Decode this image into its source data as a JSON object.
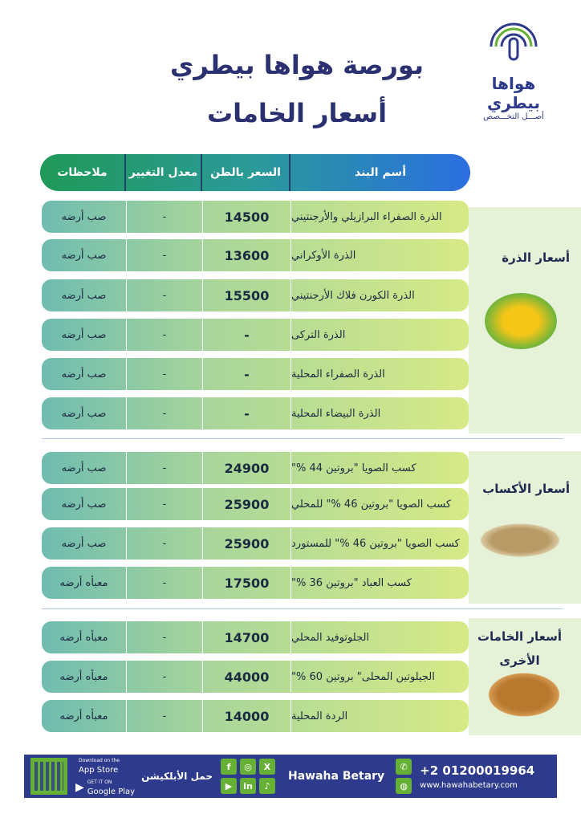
{
  "brand": {
    "name_ar": "هواها بيطري",
    "tagline_ar": "أصـــل التخـــصص"
  },
  "header": {
    "title": "بورصة هواها بيطري",
    "subtitle": "أسعار الخامات"
  },
  "table": {
    "columns": {
      "name": "أسم البند",
      "price": "السعر بالطن",
      "change": "معدل التغيير",
      "notes": "ملاحظات"
    }
  },
  "categories": [
    {
      "label": "أسعار الذرة",
      "rows": [
        {
          "name": "الذرة الصفراء  البرازيلي والأرجنتيني",
          "price": "14500",
          "change": "-",
          "notes": "صب أرضه"
        },
        {
          "name": "الذرة الأوكراني",
          "price": "13600",
          "change": "-",
          "notes": "صب أرضه"
        },
        {
          "name": "الذرة الكورن فلاك الأرجنتيني",
          "price": "15500",
          "change": "-",
          "notes": "صب أرضه"
        },
        {
          "name": "الذرة  التركى",
          "price": "-",
          "change": "-",
          "notes": "صب أرضه"
        },
        {
          "name": "الذرة الصفراء المحلية",
          "price": "-",
          "change": "-",
          "notes": "صب أرضه"
        },
        {
          "name": "الذرة البيضاء المحلية",
          "price": "-",
          "change": "-",
          "notes": "صب أرضه"
        }
      ]
    },
    {
      "label": "أسعار الأكساب",
      "rows": [
        {
          "name": "كسب الصويا \"بروتين 44 %\"",
          "price": "24900",
          "change": "-",
          "notes": "صب أرضه"
        },
        {
          "name": "كسب الصويا \"بروتين 46 %\" للمحلي",
          "price": "25900",
          "change": "-",
          "notes": "صب أرضه"
        },
        {
          "name": "كسب الصويا \"بروتين 46 %\" للمستورد",
          "price": "25900",
          "change": "-",
          "notes": "صب أرضه"
        },
        {
          "name": "كسب العباد \"بروتين 36 %\"",
          "price": "17500",
          "change": "-",
          "notes": "معبأه أرضه"
        }
      ]
    },
    {
      "label": "أسعار الخامات الأخرى",
      "rows": [
        {
          "name": "الجلوتوفيد المحلي",
          "price": "14700",
          "change": "-",
          "notes": "معبأه أرضه"
        },
        {
          "name": "الجيلوتين المحلى\" بروتين 60 %\"",
          "price": "44000",
          "change": "-",
          "notes": "معبأه أرضه"
        },
        {
          "name": "الردة المحلية",
          "price": "14000",
          "change": "-",
          "notes": "معبأه أرضه"
        }
      ]
    }
  ],
  "footer": {
    "app_store_small": "Download on the",
    "app_store": "App Store",
    "google_small": "GET IT ON",
    "google": "Google Play",
    "download_app": "حمل الأبلكيشن",
    "brand_en": "Hawaha Betary",
    "phone": "+2 01200019964",
    "website": "www.hawahabetary.com"
  },
  "colors": {
    "navy": "#2e3a8c",
    "green": "#66b135",
    "title": "#2b3170"
  }
}
